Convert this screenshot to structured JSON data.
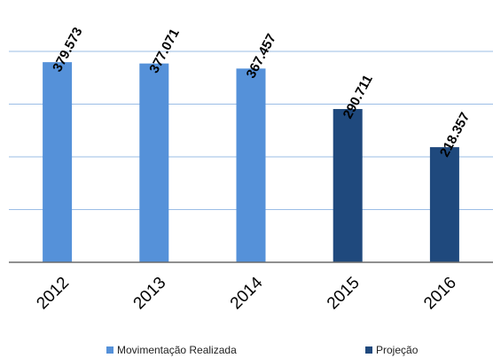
{
  "chart_data": {
    "type": "bar",
    "categories": [
      "2012",
      "2013",
      "2014",
      "2015",
      "2016"
    ],
    "values": [
      379.573,
      377.071,
      367.457,
      290.711,
      218.357
    ],
    "data_labels": [
      "379.573",
      "377.071",
      "367.457",
      "290.711",
      "218.357"
    ],
    "bar_group": [
      "Movimentação Realizada",
      "Movimentação Realizada",
      "Movimentação Realizada",
      "Projeção",
      "Projeção"
    ],
    "series": [
      {
        "name": "Movimentação Realizada",
        "color": "#5591d9"
      },
      {
        "name": "Projeção",
        "color": "#1f497d"
      }
    ],
    "ylim": [
      0,
      400
    ],
    "grid": true,
    "legend_position": "bottom",
    "title": "",
    "xlabel": "",
    "ylabel": ""
  }
}
